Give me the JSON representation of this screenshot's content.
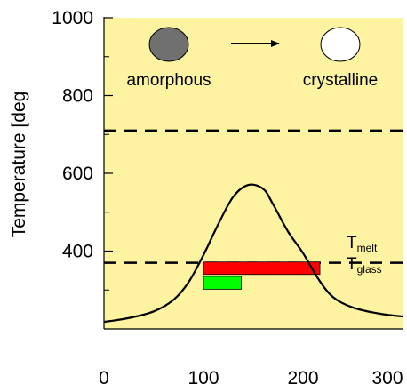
{
  "chart_data": {
    "type": "line",
    "ylabel": "Temperature [deg",
    "xlim": [
      0,
      300
    ],
    "ylim": [
      200,
      1000
    ],
    "x_ticks": [
      0,
      100,
      200,
      300
    ],
    "y_ticks": [
      400,
      600,
      800,
      1000
    ],
    "y_minor_ticks": [
      300,
      500,
      700,
      900
    ],
    "grid": false,
    "colors": {
      "background": "#fdf3a0",
      "curve": "#000000",
      "red_bar": "#ff0000",
      "green_bar": "#00ff00",
      "amorphous_fill": "#707070"
    },
    "series": [
      {
        "x": [
          -5,
          0,
          25,
          50,
          70,
          85,
          100,
          115,
          130,
          145,
          160,
          170,
          185,
          200,
          215,
          230,
          250,
          275,
          300,
          320
        ],
        "y": [
          216,
          218,
          228,
          245,
          275,
          320,
          390,
          470,
          540,
          570,
          560,
          520,
          450,
          395,
          330,
          282,
          255,
          240,
          232,
          230
        ]
      }
    ],
    "reference_lines": [
      {
        "label": "T",
        "subscript": "melt",
        "y": 710
      },
      {
        "label": "T",
        "subscript": "glass",
        "y": 370
      }
    ],
    "bars": [
      {
        "color": "red",
        "x0": 100,
        "x1": 217,
        "y0": 340,
        "y1": 372
      },
      {
        "color": "green",
        "x0": 100,
        "x1": 138,
        "y0": 302,
        "y1": 335
      }
    ],
    "annotations": {
      "left_label": "amorphous",
      "right_label": "crystalline",
      "arrow_icon": "arrow-right-icon"
    }
  }
}
